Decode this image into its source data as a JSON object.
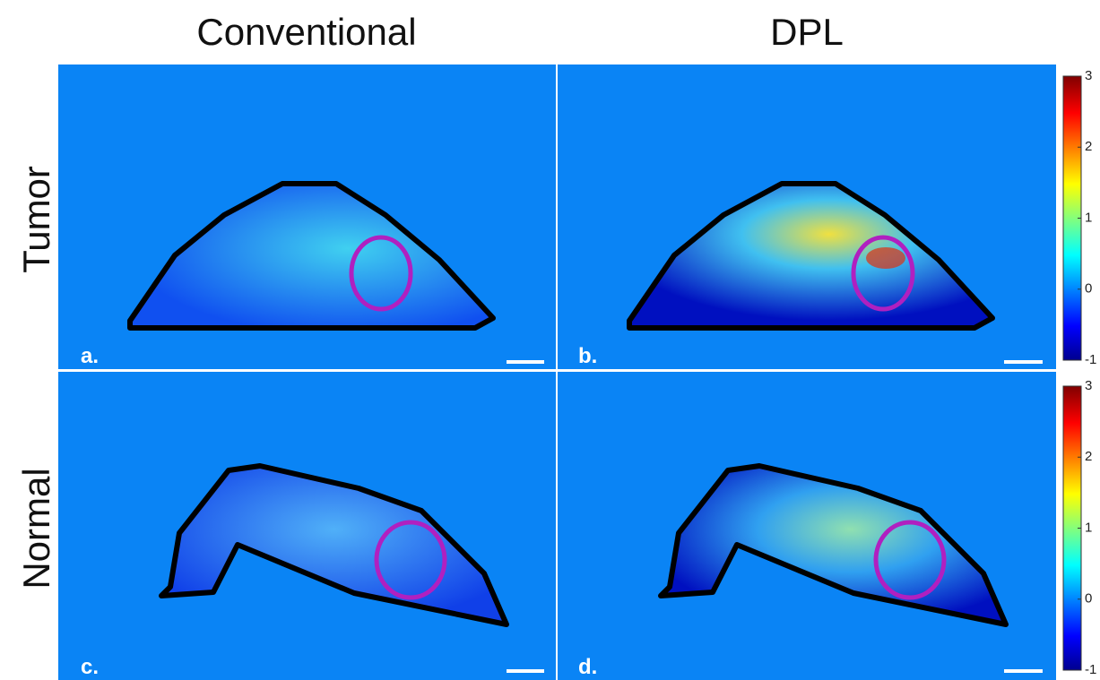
{
  "column_titles": [
    "Conventional",
    "DPL"
  ],
  "row_labels": [
    "Tumor",
    "Normal"
  ],
  "panel_labels": [
    "a.",
    "b.",
    "c.",
    "d."
  ],
  "colorbars": [
    {
      "ticks": [
        3,
        2,
        1,
        0,
        -1
      ]
    },
    {
      "ticks": [
        3,
        2,
        1,
        0,
        -1
      ]
    }
  ]
}
